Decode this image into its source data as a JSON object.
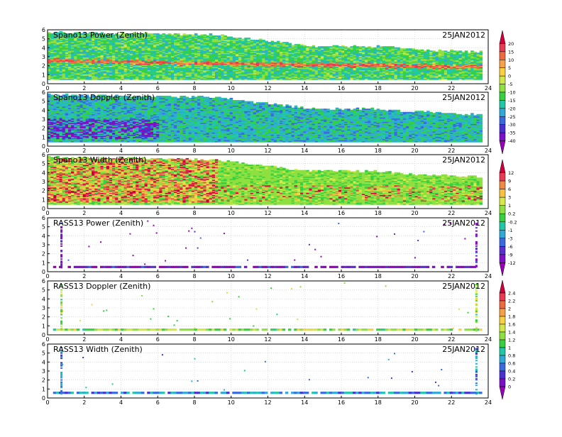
{
  "figure": {
    "colors": {
      "frame": "#000000",
      "grid": "#c8c8c8",
      "background": "#ffffff"
    }
  },
  "colorbars": [
    {
      "labels": [
        "20",
        "15",
        "10",
        "5",
        "0",
        "-5",
        "-10",
        "-15",
        "-20",
        "-25",
        "-30",
        "-35",
        "-40"
      ],
      "colors": [
        "#d0003a",
        "#e83a52",
        "#f06a40",
        "#f6a048",
        "#f8d040",
        "#cfe848",
        "#8ee040",
        "#36d040",
        "#20c8a8",
        "#30a8d8",
        "#3a6ae0",
        "#4a30d0",
        "#7a10c8",
        "#9a00b8"
      ]
    },
    {
      "labels": [
        "12",
        "9",
        "6",
        "3",
        "1",
        "0.2",
        "-0.2",
        "-1",
        "-3",
        "-6",
        "-9",
        "-12"
      ],
      "colors": [
        "#d0003a",
        "#e83a52",
        "#f08a40",
        "#f8c040",
        "#d8e848",
        "#8ee040",
        "#36d040",
        "#20c8a8",
        "#30a8d8",
        "#3a6ae0",
        "#5a30d0",
        "#8010c8",
        "#9a00b8"
      ]
    },
    {
      "labels": [
        "2.4",
        "2.2",
        "2",
        "1.8",
        "1.6",
        "1.4",
        "1.2",
        "1",
        "0.8",
        "0.6",
        "0.4",
        "0.2",
        "0"
      ],
      "colors": [
        "#d0003a",
        "#e83a52",
        "#f06a40",
        "#f6a048",
        "#f8d040",
        "#cfe848",
        "#8ee040",
        "#36d040",
        "#20c8a8",
        "#30a8d8",
        "#3a6ae0",
        "#4a30d0",
        "#7a10c8",
        "#9a00b8"
      ]
    }
  ],
  "chart_data": [
    {
      "type": "heatmap",
      "title": "Spano13 Power (Zenith)",
      "date": "25JAN2012",
      "x": {
        "range": [
          0,
          24
        ],
        "ticks": [
          "0",
          "2",
          "4",
          "6",
          "8",
          "10",
          "12",
          "14",
          "16",
          "18",
          "20",
          "22",
          "24"
        ]
      },
      "y": {
        "range": [
          0,
          6
        ],
        "ticks": [
          "0",
          "1",
          "2",
          "3",
          "4",
          "5",
          "6"
        ]
      },
      "grid": true,
      "colorbar": 0,
      "features": {
        "base_value_range": [
          -20,
          -5
        ],
        "bright_layer": {
          "height_km": [
            2.5,
            1.8
          ],
          "value_range": [
            5,
            15
          ],
          "from_hour": 0,
          "to_hour": 23.6
        },
        "data_top_km": [
          [
            0,
            5.8
          ],
          [
            9.2,
            5.5
          ],
          [
            12,
            4.8
          ],
          [
            14,
            4.3
          ],
          [
            18,
            4.2
          ],
          [
            20,
            3.9
          ],
          [
            23.6,
            3.6
          ]
        ]
      }
    },
    {
      "type": "heatmap",
      "title": "Spano13 Doppler (Zenith)",
      "date": "25JAN2012",
      "x": {
        "range": [
          0,
          24
        ],
        "ticks": [
          "0",
          "2",
          "4",
          "6",
          "8",
          "10",
          "12",
          "14",
          "16",
          "18",
          "20",
          "22",
          "24"
        ]
      },
      "y": {
        "range": [
          0,
          6
        ],
        "ticks": [
          "0",
          "1",
          "2",
          "3",
          "4",
          "5",
          "6"
        ]
      },
      "grid": true,
      "colorbar": 0,
      "features": {
        "base_value_range": [
          -25,
          -10
        ],
        "low_values_region": {
          "height_km": [
            0.8,
            3.0
          ],
          "hours": [
            0,
            6
          ],
          "value_range": [
            -40,
            -25
          ]
        },
        "data_top_km": [
          [
            0,
            5.8
          ],
          [
            9.2,
            5.5
          ],
          [
            12,
            4.8
          ],
          [
            14,
            4.3
          ],
          [
            18,
            4.2
          ],
          [
            20,
            3.9
          ],
          [
            23.6,
            3.6
          ]
        ]
      }
    },
    {
      "type": "heatmap",
      "title": "Spano13 Width (Zenith)",
      "date": "25JAN2012",
      "x": {
        "range": [
          0,
          24
        ],
        "ticks": [
          "0",
          "2",
          "4",
          "6",
          "8",
          "10",
          "12",
          "14",
          "16",
          "18",
          "20",
          "22",
          "24"
        ]
      },
      "y": {
        "range": [
          0,
          6
        ],
        "ticks": [
          "0",
          "1",
          "2",
          "3",
          "4",
          "5",
          "6"
        ]
      },
      "grid": true,
      "colorbar": 1,
      "features": {
        "base_value_range": [
          0.2,
          3
        ],
        "high_values_region": {
          "height_km": [
            0.6,
            5.5
          ],
          "hours": [
            0,
            9.2
          ],
          "value_range": [
            3,
            12
          ]
        },
        "data_top_km": [
          [
            0,
            5.8
          ],
          [
            9.2,
            5.5
          ],
          [
            12,
            4.8
          ],
          [
            14,
            4.3
          ],
          [
            18,
            4.2
          ],
          [
            20,
            3.9
          ],
          [
            23.6,
            3.6
          ]
        ]
      }
    },
    {
      "type": "heatmap",
      "title": "RASS13 Power (Zenith)",
      "date": "25JAN2012",
      "x": {
        "range": [
          0,
          24
        ],
        "ticks": [
          "0",
          "2",
          "4",
          "6",
          "8",
          "10",
          "12",
          "14",
          "16",
          "18",
          "20",
          "22",
          "24"
        ]
      },
      "y": {
        "range": [
          0,
          6
        ],
        "ticks": [
          "0",
          "1",
          "2",
          "3",
          "4",
          "5",
          "6"
        ]
      },
      "grid": true,
      "colorbar": 1,
      "features": {
        "ground_band_km": [
          0.4,
          0.65
        ],
        "scatter_value_range": [
          -12,
          -6
        ],
        "vertical_streaks_hours": [
          0.7,
          23.3
        ]
      }
    },
    {
      "type": "heatmap",
      "title": "RASS13 Doppler (Zenith)",
      "date": "25JAN2012",
      "x": {
        "range": [
          0,
          24
        ],
        "ticks": [
          "0",
          "2",
          "4",
          "6",
          "8",
          "10",
          "12",
          "14",
          "16",
          "18",
          "20",
          "22",
          "24"
        ]
      },
      "y": {
        "range": [
          0,
          6
        ],
        "ticks": [
          "0",
          "1",
          "2",
          "3",
          "4",
          "5",
          "6"
        ]
      },
      "grid": true,
      "colorbar": 2,
      "features": {
        "ground_band_km": [
          0.45,
          0.7
        ],
        "scatter_value_range": [
          1.0,
          1.6
        ],
        "vertical_streaks_hours": [
          0.7,
          23.3
        ]
      }
    },
    {
      "type": "heatmap",
      "title": "RASS13 Width (Zenith)",
      "date": "25JAN2012",
      "x": {
        "range": [
          0,
          24
        ],
        "ticks": [
          "0",
          "2",
          "4",
          "6",
          "8",
          "10",
          "12",
          "14",
          "16",
          "18",
          "20",
          "22",
          "24"
        ]
      },
      "y": {
        "range": [
          0,
          6
        ],
        "ticks": [
          "0",
          "1",
          "2",
          "3",
          "4",
          "5",
          "6"
        ]
      },
      "grid": true,
      "colorbar": 2,
      "features": {
        "ground_band_km": [
          0.45,
          0.7
        ],
        "scatter_value_range": [
          0.4,
          1.0
        ],
        "vertical_streaks_hours": [
          0.7,
          23.3
        ]
      }
    }
  ]
}
